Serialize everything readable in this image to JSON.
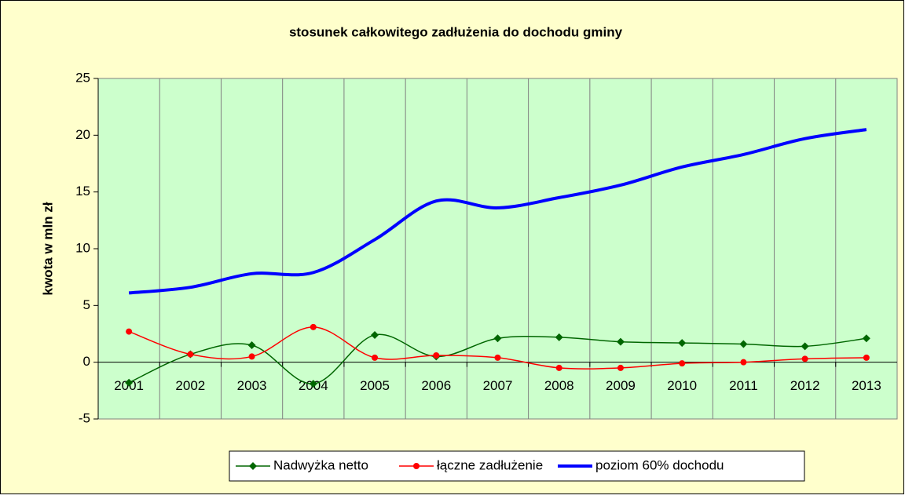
{
  "chart_data": {
    "type": "line",
    "title": "stosunek całkowitego zadłużenia do dochodu gminy",
    "y_label": "kwota w mln zł",
    "categories": [
      "2001",
      "2002",
      "2003",
      "2004",
      "2005",
      "2006",
      "2007",
      "2008",
      "2009",
      "2010",
      "2011",
      "2012",
      "2013"
    ],
    "series": [
      {
        "name": "Nadwyżka netto",
        "color": "#006600",
        "marker": "diamond",
        "values": [
          -1.8,
          0.7,
          1.5,
          -1.9,
          2.4,
          0.5,
          2.1,
          2.2,
          1.8,
          1.7,
          1.6,
          1.4,
          2.1
        ]
      },
      {
        "name": "łączne zadłużenie",
        "color": "#ff0000",
        "marker": "circle",
        "values": [
          2.7,
          0.7,
          0.5,
          3.1,
          0.4,
          0.6,
          0.4,
          -0.5,
          -0.5,
          -0.1,
          0.0,
          0.3,
          0.4
        ]
      },
      {
        "name": "poziom 60% dochodu",
        "color": "#0000ff",
        "marker": "none",
        "values": [
          6.1,
          6.6,
          7.8,
          7.9,
          10.8,
          14.2,
          13.6,
          14.5,
          15.6,
          17.2,
          18.3,
          19.7,
          20.5
        ]
      }
    ],
    "ylim": [
      -5,
      25
    ],
    "yticks": [
      -5,
      0,
      5,
      10,
      15,
      20,
      25
    ],
    "grid": true,
    "smooth": true,
    "legend": "bottom"
  }
}
